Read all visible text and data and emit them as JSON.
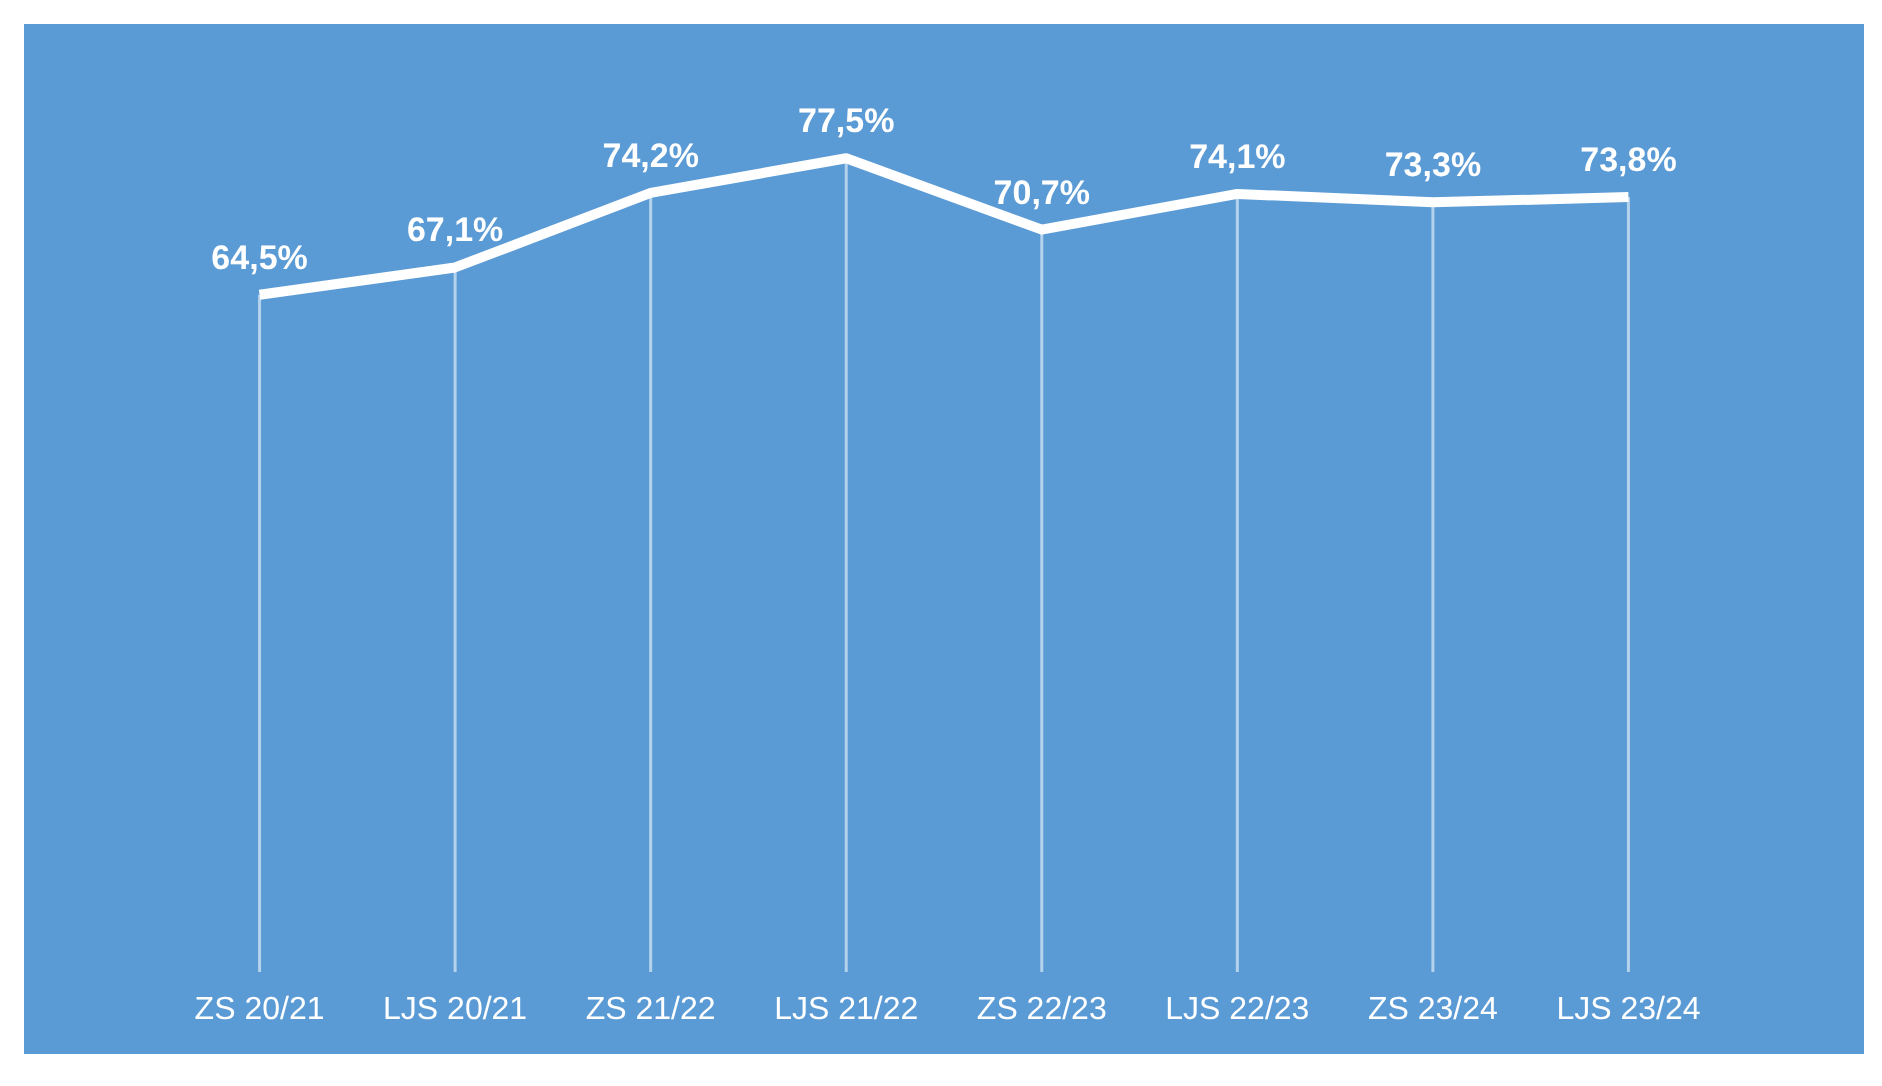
{
  "chart_data": {
    "type": "line",
    "categories": [
      "ZS 20/21",
      "LJS 20/21",
      "ZS 21/22",
      "LJS 21/22",
      "ZS 22/23",
      "LJS 22/23",
      "ZS 23/24",
      "LJS 23/24"
    ],
    "series": [
      {
        "color": "#ffffff",
        "values": [
          64.5,
          67.1,
          74.2,
          77.5,
          70.7,
          74.1,
          73.3,
          73.8
        ],
        "value_labels": [
          "64,5%",
          "67,1%",
          "74,2%",
          "77,5%",
          "70,7%",
          "74,1%",
          "73,3%",
          "73,8%"
        ]
      }
    ],
    "grid": "x",
    "legend": false,
    "tick_labels": "x",
    "marker": "none",
    "line_style": "solid"
  }
}
